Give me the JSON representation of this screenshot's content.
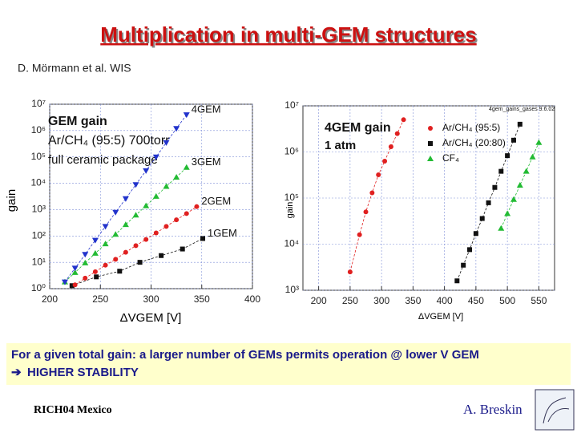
{
  "slide": {
    "title": "Multiplication in multi-GEM structures",
    "author": "D. Mörmann et al. WIS",
    "caption": "For a given total gain: a larger number of GEMs permits operation @ lower V GEM",
    "caption2": "HIGHER STABILITY",
    "footer_left": "RICH04 Mexico",
    "footer_right": "A. Breskin"
  },
  "chart_data": [
    {
      "type": "scatter",
      "y_label": "gain",
      "x_label": "ΔVGEM [V]",
      "annotations": [
        "GEM gain",
        "Ar/CH₄ (95:5) 700torr",
        "full ceramic package"
      ],
      "xlim": [
        200,
        400
      ],
      "xticks": [
        200,
        250,
        300,
        350,
        400
      ],
      "log_y": true,
      "grid": true,
      "ylim": [
        1,
        10000000
      ],
      "yticks": [
        {
          "value": 1,
          "label": "10⁰"
        },
        {
          "value": 10,
          "label": "10¹"
        },
        {
          "value": 100,
          "label": "10²"
        },
        {
          "value": 1000,
          "label": "10³"
        },
        {
          "value": 10000,
          "label": "10⁴"
        },
        {
          "value": 100000,
          "label": "10⁵"
        },
        {
          "value": 1000000,
          "label": "10⁶"
        },
        {
          "value": 10000000,
          "label": "10⁷"
        }
      ],
      "legend": "series-end",
      "series": [
        {
          "name": "1GEM",
          "color": "#111111",
          "marker": "square",
          "x": [
            222,
            246,
            269,
            289,
            310,
            331,
            351
          ],
          "values": [
            1.3,
            2.8,
            4.6,
            10,
            18,
            32,
            80
          ]
        },
        {
          "name": "2GEM",
          "color": "#e02020",
          "marker": "circle",
          "x": [
            225,
            235,
            245,
            255,
            265,
            275,
            285,
            295,
            305,
            315,
            325,
            335,
            345
          ],
          "values": [
            1.4,
            2.5,
            4.4,
            7.8,
            13,
            24,
            43,
            74,
            130,
            230,
            410,
            710,
            1300
          ]
        },
        {
          "name": "3GEM",
          "color": "#22bb33",
          "marker": "triangle",
          "x": [
            215,
            225,
            235,
            245,
            255,
            265,
            275,
            285,
            295,
            305,
            315,
            325,
            335
          ],
          "values": [
            1.8,
            4.1,
            9.5,
            22,
            50,
            115,
            270,
            620,
            1400,
            3200,
            7600,
            17000,
            40000
          ]
        },
        {
          "name": "4GEM",
          "color": "#2233cc",
          "marker": "triangle-down",
          "x": [
            215,
            225,
            235,
            245,
            255,
            265,
            275,
            285,
            295,
            305,
            315,
            325,
            335
          ],
          "values": [
            1.8,
            6,
            20,
            69,
            230,
            790,
            2600,
            8900,
            30000,
            100000,
            350000,
            1200000,
            4000000
          ]
        }
      ]
    },
    {
      "type": "scatter",
      "y_label": "gain",
      "x_label": "ΔVGEM [V]",
      "annotations": [
        "4GEM gain",
        "1 atm",
        "4gem_gains_gases 9.6.02"
      ],
      "xlim": [
        175,
        575
      ],
      "xticks": [
        200,
        250,
        300,
        350,
        400,
        450,
        500,
        550
      ],
      "log_y": true,
      "grid": true,
      "ylim": [
        1000,
        10000000
      ],
      "yticks": [
        {
          "value": 1000,
          "label": "10³"
        },
        {
          "value": 10000,
          "label": "10⁴"
        },
        {
          "value": 100000,
          "label": "10⁵"
        },
        {
          "value": 1000000,
          "label": "10⁶"
        },
        {
          "value": 10000000,
          "label": "10⁷"
        }
      ],
      "legend": "top-right",
      "series": [
        {
          "name": "Ar/CH₄ (95:5)",
          "color": "#e02020",
          "marker": "circle",
          "x": [
            250,
            265,
            275,
            285,
            295,
            305,
            315,
            325,
            335
          ],
          "values": [
            2500,
            16000,
            50000,
            130000,
            320000,
            630000,
            1300000,
            2500000,
            5000000
          ]
        },
        {
          "name": "Ar/CH₄ (20:80)",
          "color": "#111111",
          "marker": "square",
          "x": [
            420,
            430,
            440,
            450,
            460,
            470,
            480,
            490,
            500,
            510,
            520
          ],
          "values": [
            1600,
            3500,
            7600,
            17000,
            36000,
            79000,
            170000,
            380000,
            830000,
            1800000,
            4000000
          ]
        },
        {
          "name": "CF₄",
          "color": "#22bb33",
          "marker": "triangle",
          "x": [
            490,
            500,
            510,
            520,
            530,
            540,
            550
          ],
          "values": [
            22000,
            46000,
            93000,
            190000,
            380000,
            780000,
            1600000
          ]
        }
      ]
    }
  ]
}
